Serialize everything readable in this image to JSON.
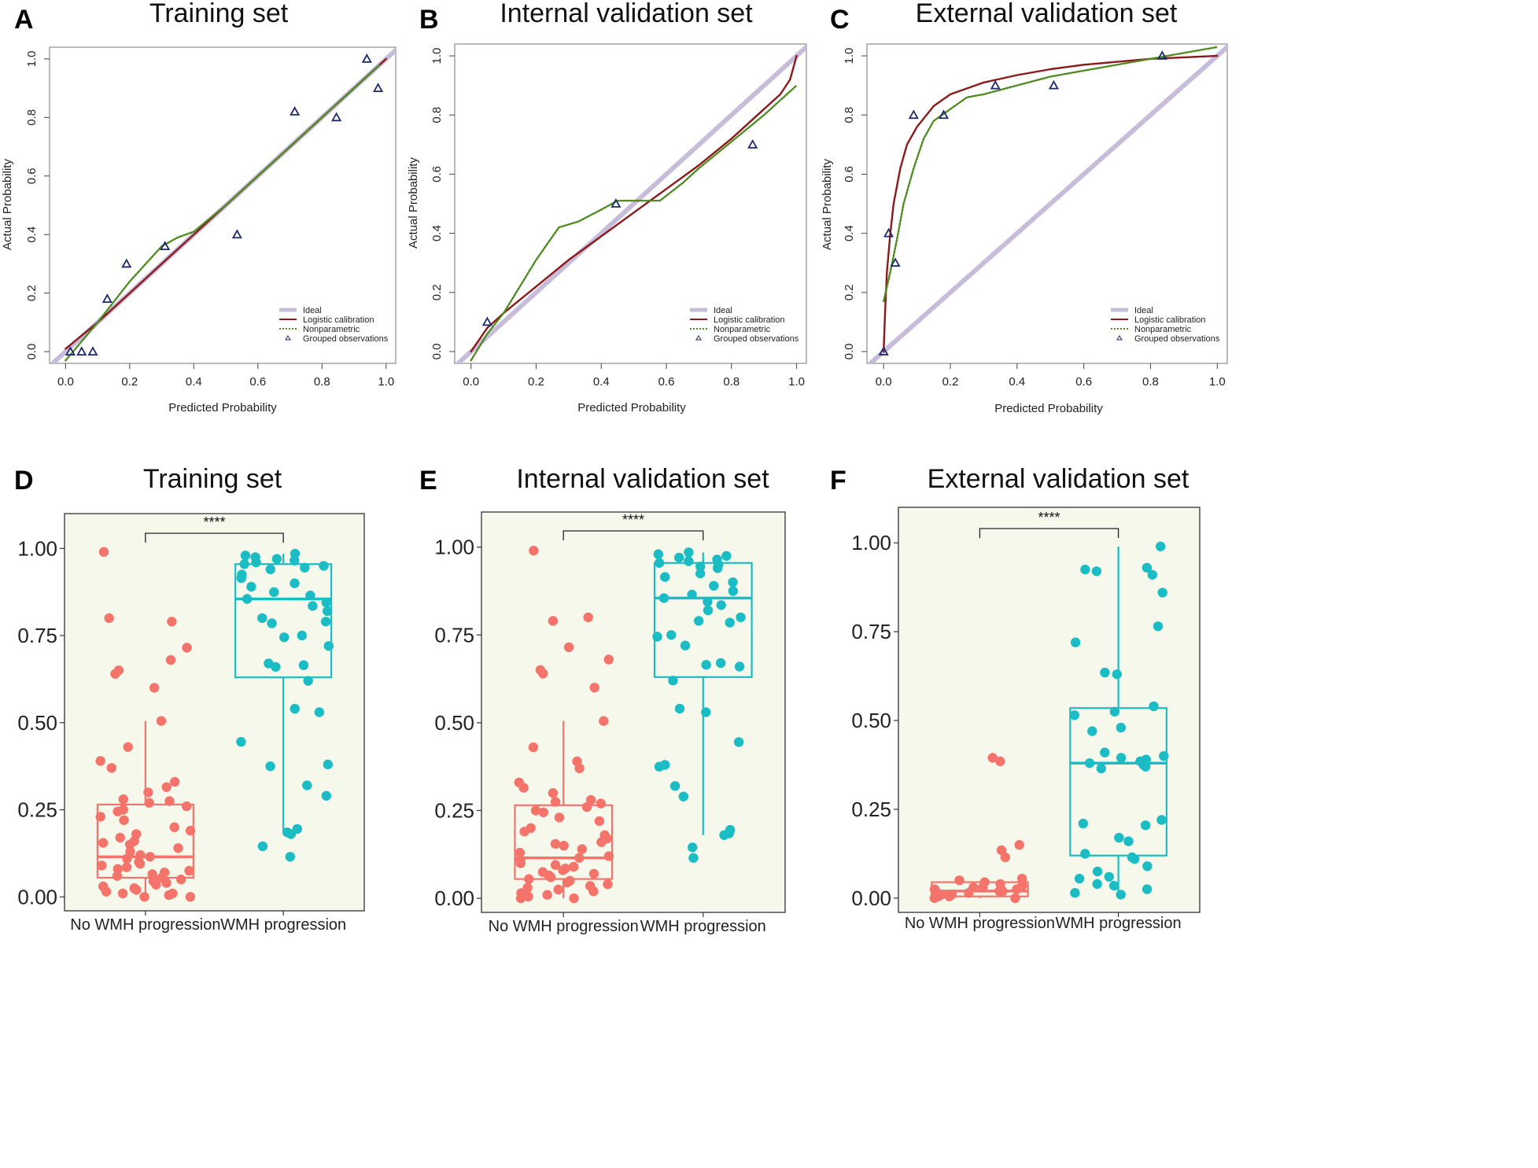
{
  "figure": {
    "colors": {
      "ideal": "#c7bddb",
      "logistic": "#8b1a1a",
      "nonparametric": "#4d8a1f",
      "observations": "#1c2a6b",
      "box_bg": "#f6f8ec",
      "no_progression": "#f4746b",
      "progression": "#1cbcc4"
    }
  },
  "chart_data": [
    {
      "panel": "A",
      "type": "line",
      "title": "Training set",
      "xlabel": "Predicted Probability",
      "ylabel": "Actual Probability",
      "xlim": [
        -0.05,
        1.03
      ],
      "ylim": [
        -0.04,
        1.04
      ],
      "xticks": [
        "0.0",
        "0.2",
        "0.4",
        "0.6",
        "0.8",
        "1.0"
      ],
      "yticks": [
        "0.0",
        "0.2",
        "0.4",
        "0.6",
        "0.8",
        "1.0"
      ],
      "legend": [
        "Ideal",
        "Logistic calibration",
        "Nonparametric",
        "Grouped observations"
      ],
      "legend_position": "bottom-right",
      "series": [
        {
          "name": "Ideal",
          "x": [
            -0.05,
            1.03
          ],
          "y": [
            -0.05,
            1.03
          ]
        },
        {
          "name": "Logistic calibration",
          "x": [
            0.0,
            0.1,
            0.2,
            0.3,
            0.4,
            0.5,
            0.6,
            0.7,
            0.8,
            0.9,
            1.0
          ],
          "y": [
            0.01,
            0.1,
            0.2,
            0.3,
            0.4,
            0.5,
            0.6,
            0.7,
            0.8,
            0.9,
            1.0
          ]
        },
        {
          "name": "Nonparametric",
          "x": [
            0.0,
            0.1,
            0.2,
            0.3,
            0.35,
            0.4,
            0.5,
            0.6,
            0.7,
            0.8,
            0.9,
            0.98
          ],
          "y": [
            -0.03,
            0.1,
            0.24,
            0.36,
            0.39,
            0.41,
            0.5,
            0.6,
            0.7,
            0.8,
            0.9,
            0.98
          ]
        }
      ],
      "observations": {
        "x": [
          0.015,
          0.05,
          0.085,
          0.13,
          0.19,
          0.31,
          0.535,
          0.715,
          0.845,
          0.94,
          0.975
        ],
        "y": [
          0.0,
          0.0,
          0.0,
          0.18,
          0.3,
          0.36,
          0.4,
          0.82,
          0.8,
          1.0,
          0.9
        ]
      }
    },
    {
      "panel": "B",
      "type": "line",
      "title": "Internal validation set",
      "xlabel": "Predicted Probability",
      "ylabel": "Actual Probability",
      "xlim": [
        -0.05,
        1.03
      ],
      "ylim": [
        -0.04,
        1.04
      ],
      "xticks": [
        "0.0",
        "0.2",
        "0.4",
        "0.6",
        "0.8",
        "1.0"
      ],
      "yticks": [
        "0.0",
        "0.2",
        "0.4",
        "0.6",
        "0.8",
        "1.0"
      ],
      "legend": [
        "Ideal",
        "Logistic calibration",
        "Nonparametric",
        "Grouped observations"
      ],
      "legend_position": "bottom-right",
      "series": [
        {
          "name": "Ideal",
          "x": [
            -0.05,
            1.03
          ],
          "y": [
            -0.05,
            1.03
          ]
        },
        {
          "name": "Logistic calibration",
          "x": [
            0.0,
            0.05,
            0.1,
            0.2,
            0.3,
            0.4,
            0.5,
            0.6,
            0.7,
            0.8,
            0.9,
            0.95,
            0.98,
            1.0
          ],
          "y": [
            0.0,
            0.08,
            0.13,
            0.22,
            0.31,
            0.39,
            0.47,
            0.55,
            0.63,
            0.72,
            0.82,
            0.87,
            0.92,
            1.0
          ]
        },
        {
          "name": "Nonparametric",
          "x": [
            0.0,
            0.05,
            0.1,
            0.15,
            0.2,
            0.27,
            0.33,
            0.4,
            0.45,
            0.5,
            0.58,
            0.65,
            0.7,
            0.8,
            0.9,
            1.0
          ],
          "y": [
            -0.03,
            0.06,
            0.13,
            0.22,
            0.31,
            0.42,
            0.44,
            0.48,
            0.51,
            0.51,
            0.51,
            0.57,
            0.62,
            0.71,
            0.8,
            0.9
          ]
        }
      ],
      "observations": {
        "x": [
          0.05,
          0.445,
          0.865
        ],
        "y": [
          0.1,
          0.5,
          0.7
        ]
      }
    },
    {
      "panel": "C",
      "type": "line",
      "title": "External validation set",
      "xlabel": "Predicted Probability",
      "ylabel": "Actual Probability",
      "xlim": [
        -0.05,
        1.03
      ],
      "ylim": [
        -0.04,
        1.04
      ],
      "xticks": [
        "0.0",
        "0.2",
        "0.4",
        "0.6",
        "0.8",
        "1.0"
      ],
      "yticks": [
        "0.0",
        "0.2",
        "0.4",
        "0.6",
        "0.8",
        "1.0"
      ],
      "legend": [
        "Ideal",
        "Logistic calibration",
        "Nonparametric",
        "Grouped observations"
      ],
      "legend_position": "bottom-right",
      "series": [
        {
          "name": "Ideal",
          "x": [
            -0.05,
            1.03
          ],
          "y": [
            -0.05,
            1.03
          ]
        },
        {
          "name": "Logistic calibration",
          "x": [
            0.0,
            0.005,
            0.01,
            0.02,
            0.03,
            0.05,
            0.07,
            0.1,
            0.15,
            0.2,
            0.3,
            0.4,
            0.5,
            0.6,
            0.7,
            0.8,
            0.9,
            1.0
          ],
          "y": [
            0.0,
            0.15,
            0.27,
            0.4,
            0.5,
            0.62,
            0.7,
            0.76,
            0.83,
            0.87,
            0.91,
            0.935,
            0.955,
            0.97,
            0.98,
            0.99,
            0.995,
            1.0
          ]
        },
        {
          "name": "Nonparametric",
          "x": [
            0.0,
            0.02,
            0.04,
            0.06,
            0.09,
            0.12,
            0.15,
            0.2,
            0.25,
            0.3,
            0.4,
            0.5,
            0.6,
            0.7,
            0.8,
            0.9,
            1.0
          ],
          "y": [
            0.17,
            0.27,
            0.38,
            0.5,
            0.62,
            0.72,
            0.78,
            0.82,
            0.86,
            0.87,
            0.9,
            0.93,
            0.95,
            0.97,
            0.99,
            1.01,
            1.03
          ]
        }
      ],
      "observations": {
        "x": [
          0.0,
          0.015,
          0.035,
          0.09,
          0.18,
          0.335,
          0.51,
          0.835
        ],
        "y": [
          0.0,
          0.4,
          0.3,
          0.8,
          0.8,
          0.9,
          0.9,
          1.0
        ]
      }
    },
    {
      "panel": "D",
      "type": "box",
      "title": "Training set",
      "categories": [
        "No WMH progression",
        "WMH progression"
      ],
      "ylim": [
        -0.04,
        1.1
      ],
      "yticks": [
        "0.00",
        "0.25",
        "0.50",
        "0.75",
        "1.00"
      ],
      "significance": "****",
      "boxes": [
        {
          "q1": 0.055,
          "median": 0.115,
          "q3": 0.265,
          "whisker_low": 0.0,
          "whisker_high": 0.505
        },
        {
          "q1": 0.63,
          "median": 0.855,
          "q3": 0.955,
          "whisker_low": 0.18,
          "whisker_high": 0.985
        }
      ],
      "points": [
        [
          0.99,
          0.8,
          0.79,
          0.715,
          0.68,
          0.65,
          0.64,
          0.6,
          0.505,
          0.43,
          0.39,
          0.37,
          0.33,
          0.315,
          0.3,
          0.28,
          0.275,
          0.27,
          0.26,
          0.25,
          0.245,
          0.23,
          0.22,
          0.2,
          0.19,
          0.18,
          0.17,
          0.16,
          0.155,
          0.15,
          0.14,
          0.13,
          0.12,
          0.115,
          0.11,
          0.1,
          0.095,
          0.09,
          0.085,
          0.08,
          0.075,
          0.07,
          0.065,
          0.06,
          0.055,
          0.05,
          0.045,
          0.04,
          0.035,
          0.03,
          0.025,
          0.02,
          0.015,
          0.01,
          0.01,
          0.005,
          0.0,
          0.0
        ],
        [
          0.985,
          0.98,
          0.975,
          0.97,
          0.965,
          0.96,
          0.955,
          0.95,
          0.945,
          0.94,
          0.925,
          0.915,
          0.9,
          0.89,
          0.875,
          0.865,
          0.855,
          0.845,
          0.835,
          0.82,
          0.8,
          0.79,
          0.785,
          0.75,
          0.745,
          0.72,
          0.67,
          0.665,
          0.66,
          0.62,
          0.54,
          0.53,
          0.445,
          0.38,
          0.375,
          0.32,
          0.29,
          0.195,
          0.185,
          0.18,
          0.145,
          0.115
        ]
      ]
    },
    {
      "panel": "E",
      "type": "box",
      "title": "Internal validation set",
      "categories": [
        "No WMH progression",
        "WMH progression"
      ],
      "ylim": [
        -0.04,
        1.1
      ],
      "yticks": [
        "0.00",
        "0.25",
        "0.50",
        "0.75",
        "1.00"
      ],
      "significance": "****",
      "boxes": [
        {
          "q1": 0.055,
          "median": 0.115,
          "q3": 0.265,
          "whisker_low": 0.0,
          "whisker_high": 0.505
        },
        {
          "q1": 0.63,
          "median": 0.855,
          "q3": 0.955,
          "whisker_low": 0.18,
          "whisker_high": 0.985
        }
      ],
      "points": [
        [
          0.99,
          0.8,
          0.79,
          0.715,
          0.68,
          0.65,
          0.64,
          0.6,
          0.505,
          0.43,
          0.39,
          0.37,
          0.33,
          0.315,
          0.3,
          0.28,
          0.275,
          0.27,
          0.26,
          0.25,
          0.245,
          0.23,
          0.22,
          0.2,
          0.19,
          0.18,
          0.17,
          0.16,
          0.155,
          0.15,
          0.14,
          0.13,
          0.12,
          0.115,
          0.11,
          0.1,
          0.095,
          0.09,
          0.085,
          0.08,
          0.075,
          0.07,
          0.065,
          0.06,
          0.055,
          0.05,
          0.045,
          0.04,
          0.035,
          0.03,
          0.025,
          0.02,
          0.015,
          0.01,
          0.01,
          0.005,
          0.0,
          0.0
        ],
        [
          0.985,
          0.98,
          0.975,
          0.97,
          0.965,
          0.96,
          0.955,
          0.95,
          0.945,
          0.94,
          0.925,
          0.915,
          0.9,
          0.89,
          0.875,
          0.865,
          0.855,
          0.845,
          0.835,
          0.82,
          0.8,
          0.79,
          0.785,
          0.75,
          0.745,
          0.72,
          0.67,
          0.665,
          0.66,
          0.62,
          0.54,
          0.53,
          0.445,
          0.38,
          0.375,
          0.32,
          0.29,
          0.195,
          0.185,
          0.18,
          0.145,
          0.115
        ]
      ]
    },
    {
      "panel": "F",
      "type": "box",
      "title": "External validation set",
      "categories": [
        "No WMH progression",
        "WMH progression"
      ],
      "ylim": [
        -0.04,
        1.1
      ],
      "yticks": [
        "0.00",
        "0.25",
        "0.50",
        "0.75",
        "1.00"
      ],
      "significance": "****",
      "boxes": [
        {
          "q1": 0.005,
          "median": 0.02,
          "q3": 0.045,
          "whisker_low": 0.0,
          "whisker_high": 0.045
        },
        {
          "q1": 0.12,
          "median": 0.38,
          "q3": 0.535,
          "whisker_low": 0.0,
          "whisker_high": 0.99
        }
      ],
      "points": [
        [
          0.395,
          0.385,
          0.15,
          0.135,
          0.115,
          0.055,
          0.05,
          0.045,
          0.04,
          0.035,
          0.03,
          0.03,
          0.025,
          0.025,
          0.02,
          0.02,
          0.015,
          0.015,
          0.01,
          0.01,
          0.005,
          0.005,
          0.0,
          0.0
        ],
        [
          0.99,
          0.93,
          0.925,
          0.92,
          0.91,
          0.86,
          0.765,
          0.72,
          0.635,
          0.63,
          0.54,
          0.525,
          0.515,
          0.48,
          0.47,
          0.41,
          0.4,
          0.395,
          0.39,
          0.385,
          0.38,
          0.375,
          0.37,
          0.365,
          0.22,
          0.21,
          0.205,
          0.17,
          0.16,
          0.125,
          0.115,
          0.11,
          0.09,
          0.075,
          0.06,
          0.055,
          0.04,
          0.035,
          0.025,
          0.015,
          0.01
        ]
      ]
    }
  ]
}
